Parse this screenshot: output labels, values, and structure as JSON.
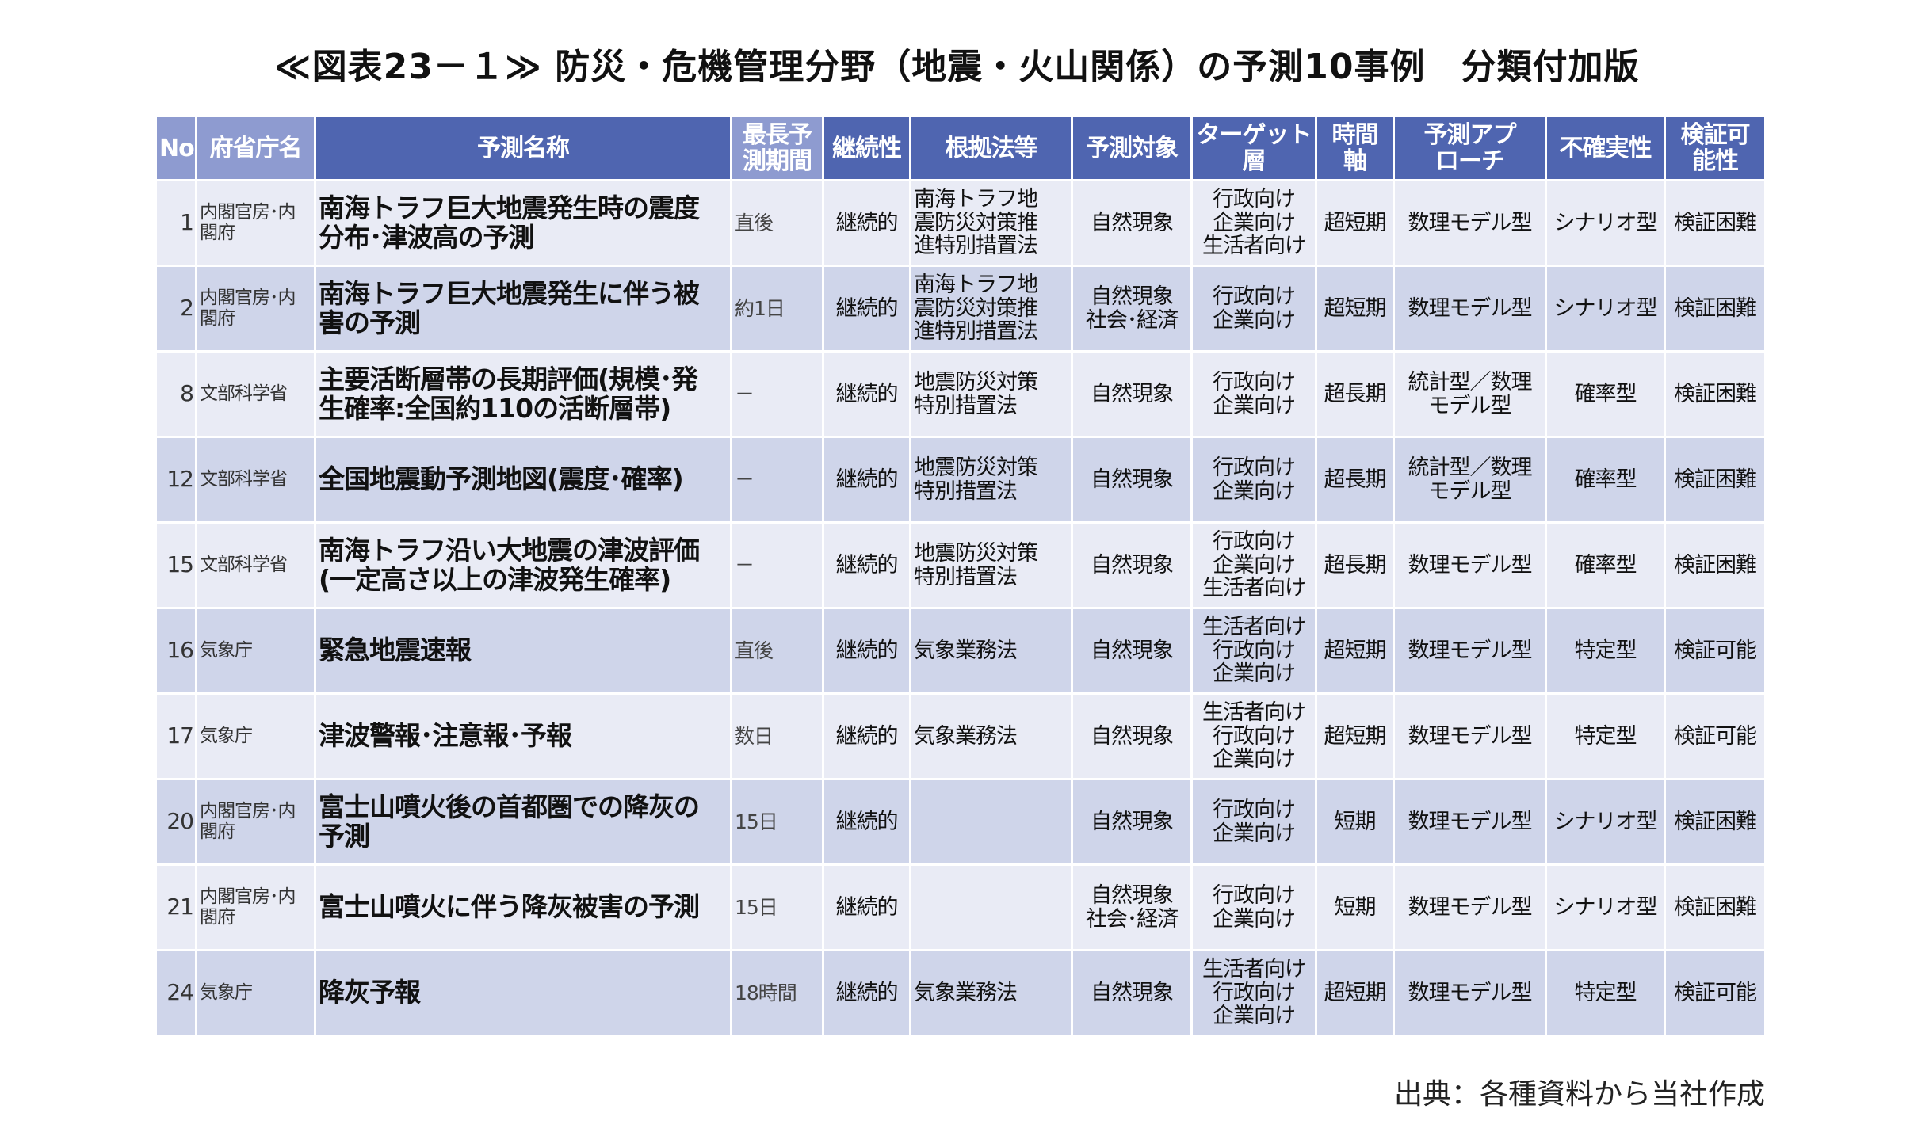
{
  "title": "≪図表23－１≫ 防災・危機管理分野（地震・火山関係）の予測10事例　分類付加版",
  "headers": [
    "No.",
    "府省庁名",
    "予測名称",
    "最長予\n測期間",
    "継続性",
    "根拠法等",
    "予測対象",
    "ターゲット\n層",
    "時間\n軸",
    "予測アプ\nローチ",
    "不確実性",
    "検証可\n能性"
  ],
  "rows": [
    {
      "no": "1",
      "agency": "内閣官房･内\n閣府",
      "name": "南海トラフ巨大地震発生時の震度\n分布･津波高の予測",
      "period": "直後",
      "continuity": "継続的",
      "law": "南海トラフ地\n震防災対策推\n進特別措置法",
      "target": "自然現象",
      "audience": "行政向け\n企業向け\n生活者向け",
      "timeframe": "超短期",
      "approach": "数理モデル型",
      "uncertainty": "シナリオ型",
      "verifiability": "検証困難"
    },
    {
      "no": "2",
      "agency": "内閣官房･内\n閣府",
      "name": "南海トラフ巨大地震発生に伴う被\n害の予測",
      "period": "約1日",
      "continuity": "継続的",
      "law": "南海トラフ地\n震防災対策推\n進特別措置法",
      "target": "自然現象\n社会･経済",
      "audience": "行政向け\n企業向け",
      "timeframe": "超短期",
      "approach": "数理モデル型",
      "uncertainty": "シナリオ型",
      "verifiability": "検証困難"
    },
    {
      "no": "8",
      "agency": "文部科学省",
      "name": "主要活断層帯の長期評価(規模･発\n生確率:全国約110の活断層帯)",
      "period": "－",
      "continuity": "継続的",
      "law": "地震防災対策\n特別措置法",
      "target": "自然現象",
      "audience": "行政向け\n企業向け",
      "timeframe": "超長期",
      "approach": "統計型／数理\nモデル型",
      "uncertainty": "確率型",
      "verifiability": "検証困難"
    },
    {
      "no": "12",
      "agency": "文部科学省",
      "name": "全国地震動予測地図(震度･確率)",
      "period": "－",
      "continuity": "継続的",
      "law": "地震防災対策\n特別措置法",
      "target": "自然現象",
      "audience": "行政向け\n企業向け",
      "timeframe": "超長期",
      "approach": "統計型／数理\nモデル型",
      "uncertainty": "確率型",
      "verifiability": "検証困難"
    },
    {
      "no": "15",
      "agency": "文部科学省",
      "name": "南海トラフ沿い大地震の津波評価\n(一定高さ以上の津波発生確率)",
      "period": "－",
      "continuity": "継続的",
      "law": "地震防災対策\n特別措置法",
      "target": "自然現象",
      "audience": "行政向け\n企業向け\n生活者向け",
      "timeframe": "超長期",
      "approach": "数理モデル型",
      "uncertainty": "確率型",
      "verifiability": "検証困難"
    },
    {
      "no": "16",
      "agency": "気象庁",
      "name": "緊急地震速報",
      "period": "直後",
      "continuity": "継続的",
      "law": "気象業務法",
      "target": "自然現象",
      "audience": "生活者向け\n行政向け\n企業向け",
      "timeframe": "超短期",
      "approach": "数理モデル型",
      "uncertainty": "特定型",
      "verifiability": "検証可能"
    },
    {
      "no": "17",
      "agency": "気象庁",
      "name": "津波警報･注意報･予報",
      "period": "数日",
      "continuity": "継続的",
      "law": "気象業務法",
      "target": "自然現象",
      "audience": "生活者向け\n行政向け\n企業向け",
      "timeframe": "超短期",
      "approach": "数理モデル型",
      "uncertainty": "特定型",
      "verifiability": "検証可能"
    },
    {
      "no": "20",
      "agency": "内閣官房･内\n閣府",
      "name": "富士山噴火後の首都圏での降灰の\n予測",
      "period": "15日",
      "continuity": "継続的",
      "law": "",
      "target": "自然現象",
      "audience": "行政向け\n企業向け",
      "timeframe": "短期",
      "approach": "数理モデル型",
      "uncertainty": "シナリオ型",
      "verifiability": "検証困難"
    },
    {
      "no": "21",
      "agency": "内閣官房･内\n閣府",
      "name": "富士山噴火に伴う降灰被害の予測",
      "period": "15日",
      "continuity": "継続的",
      "law": "",
      "target": "自然現象\n社会･経済",
      "audience": "行政向け\n企業向け",
      "timeframe": "短期",
      "approach": "数理モデル型",
      "uncertainty": "シナリオ型",
      "verifiability": "検証困難"
    },
    {
      "no": "24",
      "agency": "気象庁",
      "name": "降灰予報",
      "period": "18時間",
      "continuity": "継続的",
      "law": "気象業務法",
      "target": "自然現象",
      "audience": "生活者向け\n行政向け\n企業向け",
      "timeframe": "超短期",
      "approach": "数理モデル型",
      "uncertainty": "特定型",
      "verifiability": "検証可能"
    }
  ],
  "source": "出典：各種資料から当社作成",
  "colors": {
    "header": "#4f65b0",
    "header_light": "#8e9bd0",
    "row_light": "#e9ebf5",
    "row_dark": "#cfd5ea"
  }
}
